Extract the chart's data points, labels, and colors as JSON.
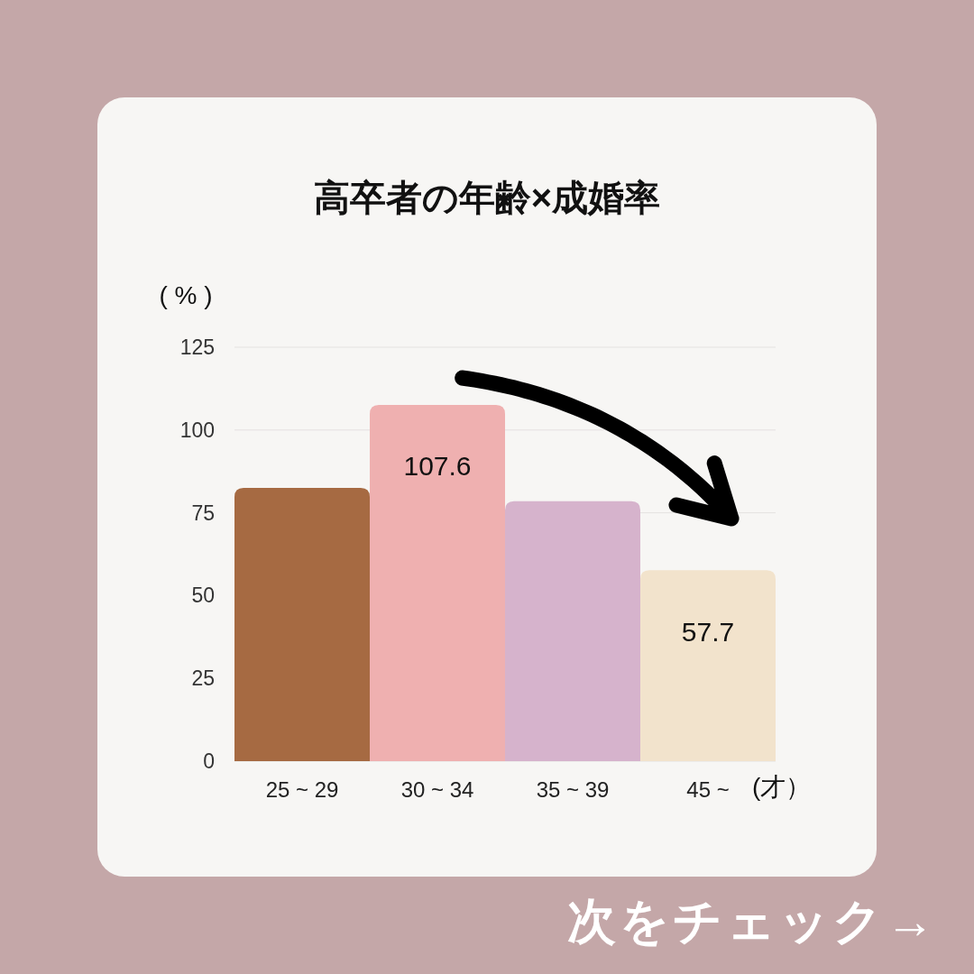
{
  "chart_data": {
    "type": "bar",
    "title": "高卒者の年齢×成婚率",
    "ylabel": "( % )",
    "xlabel": "(才）",
    "categories": [
      "25 ~ 29",
      "30 ~ 34",
      "35 ~ 39",
      "45 ~"
    ],
    "values": [
      82.5,
      107.6,
      78.5,
      57.7
    ],
    "colors": [
      "#a66a42",
      "#efb0b0",
      "#d6b3cc",
      "#f2e3cc"
    ],
    "value_labels": [
      null,
      "107.6",
      null,
      "57.7"
    ],
    "ylim": [
      0,
      125
    ],
    "yticks": [
      0,
      25,
      50,
      75,
      100,
      125
    ],
    "grid": "y",
    "annotations": [
      "次をチェック→"
    ]
  }
}
